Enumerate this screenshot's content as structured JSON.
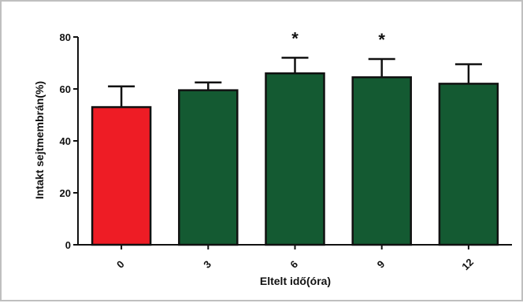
{
  "chart_data": {
    "type": "bar",
    "title": "",
    "xlabel": "Eltelt idő(óra)",
    "ylabel": "Intakt sejtmembrán(%)",
    "categories": [
      "0",
      "3",
      "6",
      "9",
      "12"
    ],
    "values": [
      53,
      59.5,
      66,
      64.5,
      62
    ],
    "error_upper": [
      61,
      62.5,
      72,
      71.5,
      69.5
    ],
    "annotations": [
      "",
      "",
      "*",
      "*",
      ""
    ],
    "ylim": [
      0,
      80
    ],
    "yticks": [
      "0",
      "20",
      "40",
      "60",
      "80"
    ],
    "grid": false,
    "legend": "none",
    "colors": [
      "#ee1c25",
      "#145a32",
      "#145a32",
      "#145a32",
      "#145a32"
    ]
  }
}
